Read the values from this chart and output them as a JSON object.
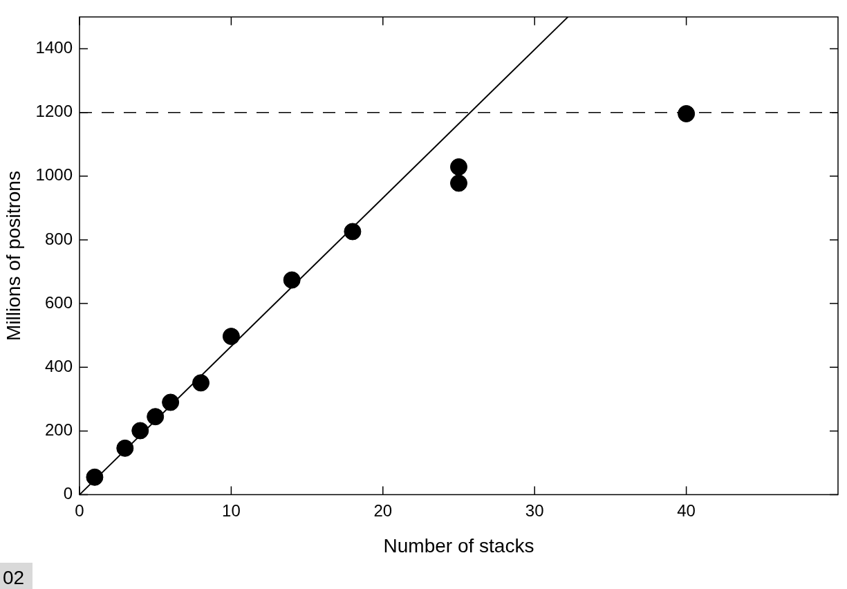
{
  "chart_data": {
    "type": "scatter",
    "xlabel": "Number of stacks",
    "ylabel": "Millions of positrons",
    "xlim": [
      0,
      50
    ],
    "xticks": [
      0,
      10,
      20,
      30,
      40
    ],
    "ylim": [
      0,
      1500
    ],
    "yticks": [
      0,
      200,
      400,
      600,
      800,
      1000,
      1200,
      1400
    ],
    "grid": false,
    "legend": false,
    "series": [
      {
        "marker": "circle",
        "color": "#000000",
        "x": [
          1,
          3,
          4,
          5,
          6,
          8,
          10,
          14,
          18,
          25,
          25,
          40
        ],
        "values": [
          55,
          146,
          201,
          245,
          290,
          351,
          497,
          674,
          826,
          1029,
          978,
          1196
        ]
      },
      {
        "type": "line",
        "marker": "none",
        "color": "#000000",
        "x": [
          0,
          32.2
        ],
        "values": [
          0,
          1500
        ]
      }
    ],
    "ref_lines": [
      {
        "axis": "y",
        "value": 1200,
        "color": "#000000",
        "line_style": "dashed"
      }
    ],
    "annotations": [
      "02"
    ]
  }
}
